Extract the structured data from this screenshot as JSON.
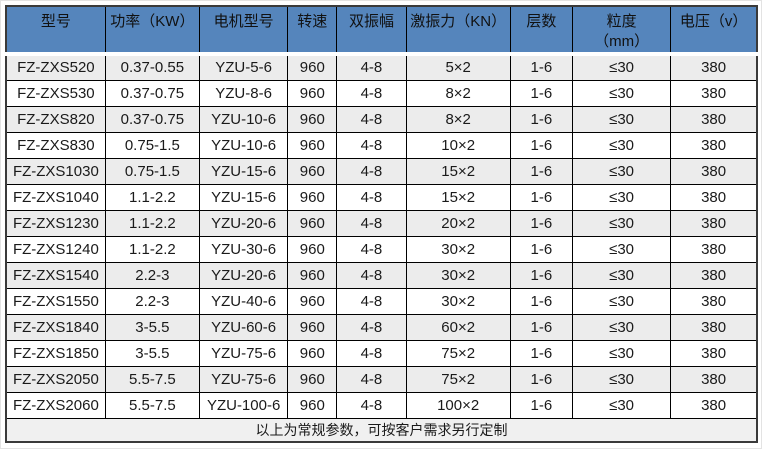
{
  "colors": {
    "header_bg": "#5585bc",
    "row_alt_bg": "#ececec",
    "footer_bg": "#f0f0f0",
    "grid_line": "#000000",
    "outer_border": "#3a3a3a"
  },
  "table": {
    "columns": [
      {
        "key": "model",
        "label": "型号"
      },
      {
        "key": "power",
        "label": "功率（KW）"
      },
      {
        "key": "motor-model",
        "label": "电机型号"
      },
      {
        "key": "speed",
        "label": "转速"
      },
      {
        "key": "amplitude",
        "label": "双振幅"
      },
      {
        "key": "force",
        "label": "激振力（KN）"
      },
      {
        "key": "layers",
        "label": "层数"
      },
      {
        "key": "granularity",
        "label": "粒度",
        "sublabel": "（mm）"
      },
      {
        "key": "voltage",
        "label": "电压（v）"
      }
    ],
    "rows": [
      [
        "FZ-ZXS520",
        "0.37-0.55",
        "YZU-5-6",
        "960",
        "4-8",
        "5×2",
        "1-6",
        "≤30",
        "380"
      ],
      [
        "FZ-ZXS530",
        "0.37-0.75",
        "YZU-8-6",
        "960",
        "4-8",
        "8×2",
        "1-6",
        "≤30",
        "380"
      ],
      [
        "FZ-ZXS820",
        "0.37-0.75",
        "YZU-10-6",
        "960",
        "4-8",
        "8×2",
        "1-6",
        "≤30",
        "380"
      ],
      [
        "FZ-ZXS830",
        "0.75-1.5",
        "YZU-10-6",
        "960",
        "4-8",
        "10×2",
        "1-6",
        "≤30",
        "380"
      ],
      [
        "FZ-ZXS1030",
        "0.75-1.5",
        "YZU-15-6",
        "960",
        "4-8",
        "15×2",
        "1-6",
        "≤30",
        "380"
      ],
      [
        "FZ-ZXS1040",
        "1.1-2.2",
        "YZU-15-6",
        "960",
        "4-8",
        "15×2",
        "1-6",
        "≤30",
        "380"
      ],
      [
        "FZ-ZXS1230",
        "1.1-2.2",
        "YZU-20-6",
        "960",
        "4-8",
        "20×2",
        "1-6",
        "≤30",
        "380"
      ],
      [
        "FZ-ZXS1240",
        "1.1-2.2",
        "YZU-30-6",
        "960",
        "4-8",
        "30×2",
        "1-6",
        "≤30",
        "380"
      ],
      [
        "FZ-ZXS1540",
        "2.2-3",
        "YZU-20-6",
        "960",
        "4-8",
        "30×2",
        "1-6",
        "≤30",
        "380"
      ],
      [
        "FZ-ZXS1550",
        "2.2-3",
        "YZU-40-6",
        "960",
        "4-8",
        "30×2",
        "1-6",
        "≤30",
        "380"
      ],
      [
        "FZ-ZXS1840",
        "3-5.5",
        "YZU-60-6",
        "960",
        "4-8",
        "60×2",
        "1-6",
        "≤30",
        "380"
      ],
      [
        "FZ-ZXS1850",
        "3-5.5",
        "YZU-75-6",
        "960",
        "4-8",
        "75×2",
        "1-6",
        "≤30",
        "380"
      ],
      [
        "FZ-ZXS2050",
        "5.5-7.5",
        "YZU-75-6",
        "960",
        "4-8",
        "75×2",
        "1-6",
        "≤30",
        "380"
      ],
      [
        "FZ-ZXS2060",
        "5.5-7.5",
        "YZU-100-6",
        "960",
        "4-8",
        "100×2",
        "1-6",
        "≤30",
        "380"
      ]
    ],
    "footer_note": "以上为常规参数，可按客户需求另行定制"
  }
}
